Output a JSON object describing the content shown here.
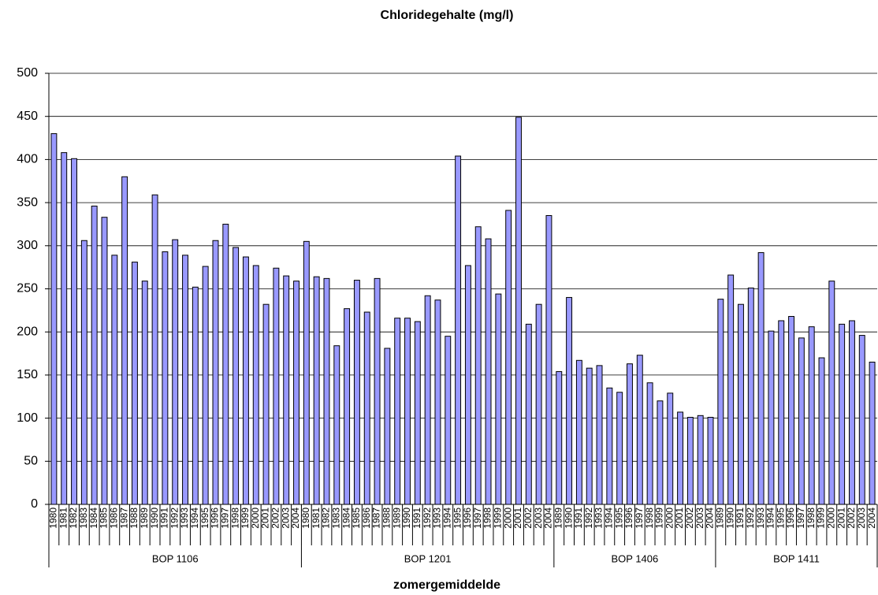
{
  "chart_data": {
    "type": "bar",
    "title": "Chloridegehalte (mg/l)",
    "x_label": "zomergemiddelde",
    "color": "#9999ff",
    "ylim": [
      0,
      500
    ],
    "yticks": [
      0,
      50,
      100,
      150,
      200,
      250,
      300,
      350,
      400,
      450,
      500
    ],
    "grid": true,
    "groups": [
      {
        "name": "BOP 1106",
        "categories": [
          "1980",
          "1981",
          "1982",
          "1983",
          "1984",
          "1985",
          "1986",
          "1987",
          "1988",
          "1989",
          "1990",
          "1991",
          "1992",
          "1993",
          "1994",
          "1995",
          "1996",
          "1997",
          "1998",
          "1999",
          "2000",
          "2001",
          "2002",
          "2003",
          "2004"
        ],
        "values": [
          430,
          408,
          401,
          306,
          346,
          333,
          289,
          380,
          281,
          259,
          359,
          293,
          307,
          289,
          252,
          276,
          306,
          325,
          298,
          287,
          277,
          232,
          274,
          265,
          259
        ]
      },
      {
        "name": "BOP 1201",
        "categories": [
          "1980",
          "1981",
          "1982",
          "1983",
          "1984",
          "1985",
          "1986",
          "1987",
          "1988",
          "1989",
          "1990",
          "1991",
          "1992",
          "1993",
          "1994",
          "1995",
          "1996",
          "1997",
          "1998",
          "1999",
          "2000",
          "2001",
          "2002",
          "2003",
          "2004"
        ],
        "values": [
          305,
          264,
          262,
          184,
          227,
          260,
          223,
          262,
          181,
          216,
          216,
          212,
          242,
          237,
          195,
          404,
          277,
          322,
          308,
          244,
          341,
          449,
          209,
          232,
          335
        ]
      },
      {
        "name": "BOP 1406",
        "categories": [
          "1989",
          "1990",
          "1991",
          "1992",
          "1993",
          "1994",
          "1995",
          "1996",
          "1997",
          "1998",
          "1999",
          "2000",
          "2001",
          "2002",
          "2003",
          "2004"
        ],
        "values": [
          154,
          240,
          167,
          158,
          161,
          135,
          130,
          163,
          173,
          141,
          120,
          129,
          107,
          101,
          103,
          101
        ]
      },
      {
        "name": "BOP 1411",
        "categories": [
          "1989",
          "1990",
          "1991",
          "1992",
          "1993",
          "1994",
          "1995",
          "1996",
          "1997",
          "1998",
          "1999",
          "2000",
          "2001",
          "2002",
          "2003",
          "2004"
        ],
        "values": [
          238,
          266,
          232,
          251,
          292,
          201,
          213,
          218,
          193,
          206,
          170,
          259,
          209,
          213,
          196,
          165
        ]
      }
    ]
  }
}
